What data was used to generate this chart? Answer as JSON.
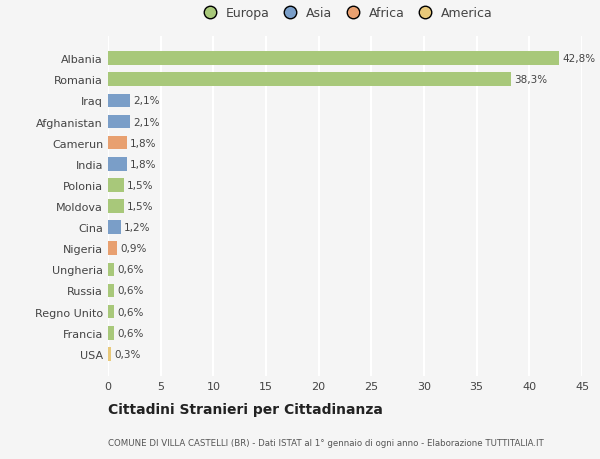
{
  "categories": [
    "USA",
    "Francia",
    "Regno Unito",
    "Russia",
    "Ungheria",
    "Nigeria",
    "Cina",
    "Moldova",
    "Polonia",
    "India",
    "Camerun",
    "Afghanistan",
    "Iraq",
    "Romania",
    "Albania"
  ],
  "values": [
    0.3,
    0.6,
    0.6,
    0.6,
    0.6,
    0.9,
    1.2,
    1.5,
    1.5,
    1.8,
    1.8,
    2.1,
    2.1,
    38.3,
    42.8
  ],
  "labels": [
    "0,3%",
    "0,6%",
    "0,6%",
    "0,6%",
    "0,6%",
    "0,9%",
    "1,2%",
    "1,5%",
    "1,5%",
    "1,8%",
    "1,8%",
    "2,1%",
    "2,1%",
    "38,3%",
    "42,8%"
  ],
  "colors": [
    "#e8c97a",
    "#a8c87a",
    "#a8c87a",
    "#a8c87a",
    "#a8c87a",
    "#e8a070",
    "#7a9ec8",
    "#a8c87a",
    "#a8c87a",
    "#7a9ec8",
    "#e8a070",
    "#7a9ec8",
    "#7a9ec8",
    "#a8c87a",
    "#a8c87a"
  ],
  "legend_labels": [
    "Europa",
    "Asia",
    "Africa",
    "America"
  ],
  "legend_colors": [
    "#a8c87a",
    "#7a9ec8",
    "#e8a070",
    "#e8c97a"
  ],
  "title": "Cittadini Stranieri per Cittadinanza",
  "subtitle": "COMUNE DI VILLA CASTELLI (BR) - Dati ISTAT al 1° gennaio di ogni anno - Elaborazione TUTTITALIA.IT",
  "xlim": [
    0,
    45
  ],
  "xticks": [
    0,
    5,
    10,
    15,
    20,
    25,
    30,
    35,
    40,
    45
  ],
  "background_color": "#f5f5f5",
  "grid_color": "#ffffff",
  "bar_height": 0.65
}
